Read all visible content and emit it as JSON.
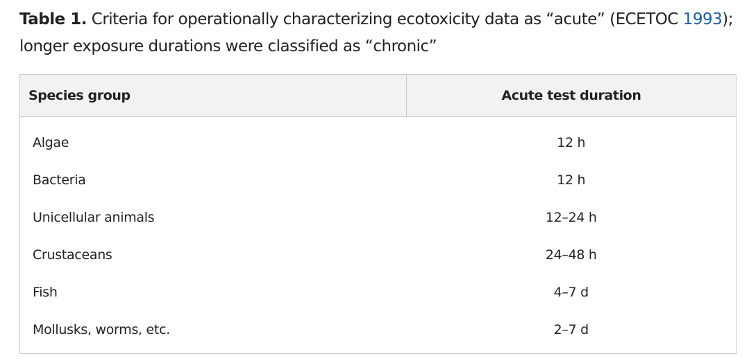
{
  "caption": {
    "label": "Table 1.",
    "text_before": " Criteria for operationally characterizing ecotoxicity data as “acute” (ECETOC ",
    "citation_year": "1993",
    "text_after": ");",
    "line2": "longer exposure durations were classified as “chronic”",
    "link_color": "#1a5aa6"
  },
  "table": {
    "headers": {
      "species": "Species group",
      "duration": "Acute test duration"
    },
    "rows": [
      {
        "species": "Algae",
        "duration": "12 h"
      },
      {
        "species": "Bacteria",
        "duration": "12 h"
      },
      {
        "species": "Unicellular animals",
        "duration": "12–24 h"
      },
      {
        "species": "Crustaceans",
        "duration": "24–48 h"
      },
      {
        "species": "Fish",
        "duration": "4–7 d"
      },
      {
        "species": "Mollusks, worms, etc.",
        "duration": "2–7 d"
      }
    ]
  }
}
